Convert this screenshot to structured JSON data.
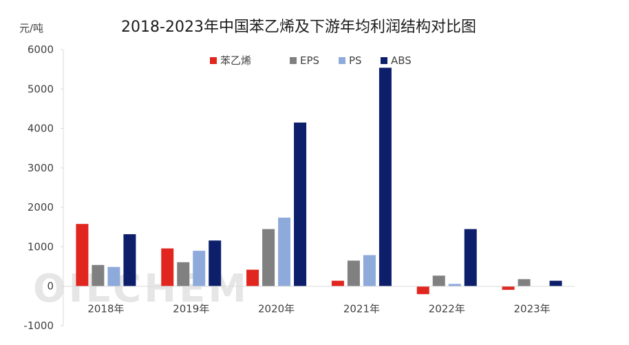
{
  "chart_data": {
    "type": "bar",
    "title": "2018-2023年中国苯乙烯及下游年均利润结构对比图",
    "ylabel": "元/吨",
    "xlabel": "",
    "categories": [
      "2018年",
      "2019年",
      "2020年",
      "2021年",
      "2022年",
      "2023年"
    ],
    "series": [
      {
        "name": "苯乙烯",
        "color": "#e0261e",
        "values": [
          1580,
          960,
          420,
          140,
          -200,
          -90
        ]
      },
      {
        "name": "EPS",
        "color": "#808080",
        "values": [
          540,
          610,
          1450,
          650,
          270,
          180
        ]
      },
      {
        "name": "PS",
        "color": "#8eaadb",
        "values": [
          490,
          900,
          1740,
          790,
          60,
          0
        ]
      },
      {
        "name": "ABS",
        "color": "#0d1f6b",
        "values": [
          1320,
          1160,
          4150,
          5540,
          1450,
          140
        ]
      }
    ],
    "ylim": [
      -1000,
      6000
    ],
    "yticks": [
      -1000,
      0,
      1000,
      2000,
      3000,
      4000,
      5000,
      6000
    ],
    "grid": false,
    "legend_position": "top"
  },
  "watermark": "OILCHEM"
}
